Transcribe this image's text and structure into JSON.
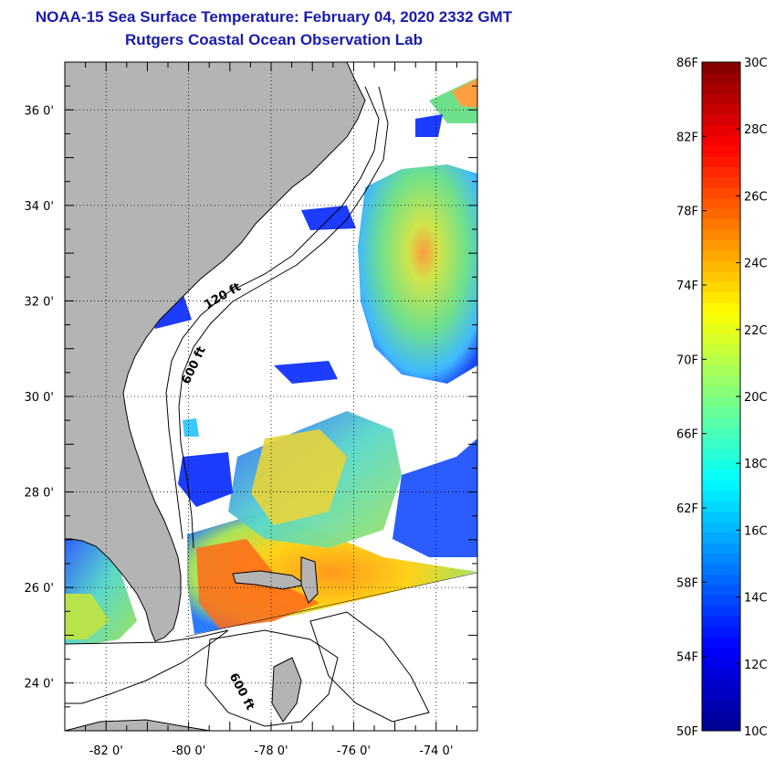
{
  "header": {
    "title": "NOAA-15 Sea Surface Temperature:  February 04, 2020 2332 GMT",
    "subtitle": "Rutgers Coastal Ocean Observation Lab"
  },
  "map": {
    "lon_range": [
      -83,
      -73
    ],
    "lat_range": [
      23,
      37
    ],
    "lon_ticks": [
      -82,
      -80,
      -78,
      -76,
      -74
    ],
    "lat_ticks": [
      24,
      26,
      28,
      30,
      32,
      34,
      36
    ],
    "lon_tick_labels": [
      "-82 0'",
      "-80 0'",
      "-78 0'",
      "-76 0'",
      "-74 0'"
    ],
    "lat_tick_labels": [
      "24 0'",
      "26 0'",
      "28 0'",
      "30 0'",
      "32 0'",
      "34 0'",
      "36 0'"
    ],
    "contour_labels": [
      "120 ft",
      "600 ft",
      "600 ft"
    ],
    "colors": {
      "land": "#b4b4b4",
      "ocean_nodata": "#ffffff",
      "grid": "#000000"
    }
  },
  "colorbar": {
    "f_labels": [
      "86F",
      "82F",
      "78F",
      "74F",
      "70F",
      "66F",
      "62F",
      "58F",
      "54F",
      "50F"
    ],
    "c_labels": [
      "30C",
      "28C",
      "26C",
      "24C",
      "22C",
      "20C",
      "18C",
      "16C",
      "14C",
      "12C",
      "10C"
    ],
    "f_range": [
      50,
      86
    ],
    "c_range": [
      10,
      30
    ],
    "colormap": [
      "#00008f",
      "#0000ff",
      "#0080ff",
      "#00ffff",
      "#80ff80",
      "#ffff00",
      "#ff8000",
      "#ff0000",
      "#800000"
    ]
  }
}
